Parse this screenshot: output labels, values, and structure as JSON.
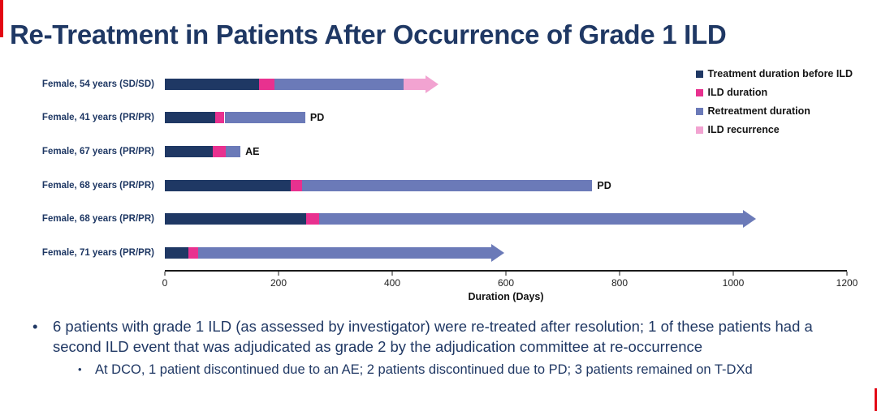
{
  "title": "Re-Treatment in Patients After Occurrence of Grade 1 ILD",
  "colors": {
    "before_ild": "#1F3864",
    "ild": "#E8318F",
    "retreat": "#6B7AB8",
    "recurrence": "#F2A3D1",
    "accent_red": "#e30613",
    "title_text": "#1F3864"
  },
  "legend": [
    {
      "label": "Treatment duration before ILD",
      "color_key": "before_ild"
    },
    {
      "label": "ILD duration",
      "color_key": "ild"
    },
    {
      "label": "Retreatment duration",
      "color_key": "retreat"
    },
    {
      "label": "ILD recurrence",
      "color_key": "recurrence"
    }
  ],
  "chart_data": {
    "type": "bar",
    "orientation": "horizontal",
    "stacked": true,
    "title": "",
    "xlabel": "Duration (Days)",
    "xlim": [
      0,
      1200
    ],
    "xticks": [
      0,
      200,
      400,
      600,
      800,
      1000,
      1200
    ],
    "series_names": [
      "Treatment duration before ILD",
      "ILD duration",
      "Retreatment duration",
      "ILD recurrence"
    ],
    "patients": [
      {
        "label": "Female, 54 years (SD/SD)",
        "before_ild": 165,
        "ild": 28,
        "retreat": 227,
        "recurrence": 38,
        "recurrence_arrow": true,
        "ongoing_arrow": false,
        "end_label": ""
      },
      {
        "label": "Female, 41 years (PR/PR)",
        "before_ild": 88,
        "ild": 17,
        "retreat": 142,
        "recurrence": 0,
        "recurrence_arrow": false,
        "ongoing_arrow": false,
        "end_label": "PD"
      },
      {
        "label": "Female, 67 years (PR/PR)",
        "before_ild": 84,
        "ild": 23,
        "retreat": 26,
        "recurrence": 0,
        "recurrence_arrow": false,
        "ongoing_arrow": false,
        "end_label": "AE"
      },
      {
        "label": "Female, 68 years (PR/PR)",
        "before_ild": 222,
        "ild": 20,
        "retreat": 510,
        "recurrence": 0,
        "recurrence_arrow": false,
        "ongoing_arrow": false,
        "end_label": "PD"
      },
      {
        "label": "Female, 68 years (PR/PR)",
        "before_ild": 248,
        "ild": 24,
        "retreat": 745,
        "recurrence": 0,
        "recurrence_arrow": false,
        "ongoing_arrow": true,
        "end_label": ""
      },
      {
        "label": "Female, 71 years (PR/PR)",
        "before_ild": 42,
        "ild": 16,
        "retreat": 516,
        "recurrence": 0,
        "recurrence_arrow": false,
        "ongoing_arrow": true,
        "end_label": ""
      }
    ]
  },
  "bullets": {
    "main_marker": "•",
    "main": "6 patients with grade 1 ILD (as assessed by investigator) were re-treated after resolution; 1 of these patients had a second ILD event that was adjudicated as grade 2 by the adjudication committee at re-occurrence",
    "sub_marker": "•",
    "sub": "At DCO, 1 patient discontinued due to an AE; 2 patients discontinued due to PD; 3 patients remained on T-DXd"
  }
}
